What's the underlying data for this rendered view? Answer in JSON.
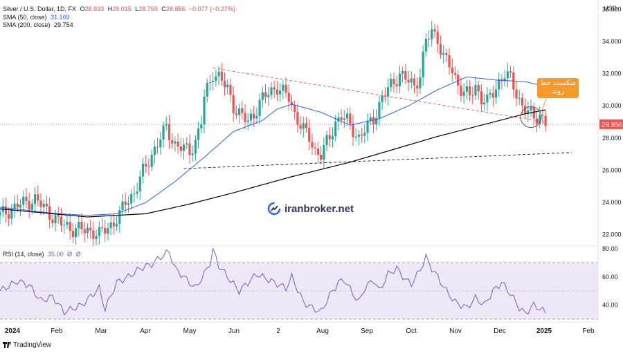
{
  "header": {
    "symbol_line": "Silver / U.S. Dollar, 1D, FX",
    "open_label": "O",
    "open": "28.933",
    "high_label": "H",
    "high": "29.015",
    "low_label": "L",
    "low": "28.759",
    "close_label": "C",
    "close": "28.856",
    "change": "−0.077 (−0.27%)",
    "sma50_label": "SMA (50, close)",
    "sma50_value": "31.169",
    "sma200_label": "SMA (200, close)",
    "sma200_value": "29.754"
  },
  "rsi_header": {
    "label": "RSI (14, close)",
    "value": "35.00",
    "extra1": "Ø",
    "extra2": "Ø"
  },
  "annotation": {
    "text_line1": "شکست خط",
    "text_line2": "روند"
  },
  "watermark": {
    "text": "iranbroker.net"
  },
  "footer": {
    "brand": "TradingView"
  },
  "colors": {
    "up": "#26a69a",
    "down": "#ef5350",
    "sma50": "#2962ff",
    "sma200": "#000000",
    "rsi_line": "#7e57c2",
    "rsi_band": "#ede7f6",
    "price_tag": "#ef5350",
    "callout": "#f79a2c"
  },
  "chart_data": {
    "type": "candlestick",
    "currency_label": "USD",
    "price_axis": {
      "ticks": [
        "36.000",
        "34.000",
        "32.000",
        "30.000",
        "28.000",
        "26.000",
        "24.000",
        "22.000"
      ],
      "range": [
        21.3,
        36.4
      ]
    },
    "last_price": "28.856",
    "time_axis": [
      "2024",
      "Feb",
      "Mar",
      "Apr",
      "May",
      "Jun",
      "2",
      "Aug",
      "Sep",
      "Oct",
      "Nov",
      "Dec",
      "2025",
      "Feb"
    ],
    "price_path": [
      [
        0,
        23.2
      ],
      [
        6,
        23.8
      ],
      [
        12,
        24.2
      ],
      [
        16,
        23.5
      ],
      [
        20,
        22.8
      ],
      [
        24,
        22.4
      ],
      [
        28,
        22.3
      ],
      [
        32,
        22.2
      ],
      [
        34,
        22.0
      ],
      [
        38,
        22.6
      ],
      [
        41,
        23.2
      ],
      [
        43,
        24.0
      ],
      [
        46,
        24.6
      ],
      [
        48,
        25.5
      ],
      [
        50,
        26.2
      ],
      [
        52,
        27.0
      ],
      [
        55,
        28.0
      ],
      [
        57,
        28.6
      ],
      [
        60,
        27.6
      ],
      [
        63,
        27.3
      ],
      [
        65,
        27.2
      ],
      [
        67,
        27.8
      ],
      [
        69,
        29.0
      ],
      [
        70,
        30.5
      ],
      [
        72,
        31.5
      ],
      [
        73,
        32.1
      ],
      [
        75,
        31.8
      ],
      [
        78,
        31.0
      ],
      [
        80,
        30.0
      ],
      [
        83,
        29.3
      ],
      [
        85,
        29.0
      ],
      [
        87,
        29.5
      ],
      [
        89,
        30.2
      ],
      [
        92,
        30.8
      ],
      [
        95,
        31.2
      ],
      [
        97,
        30.8
      ],
      [
        99,
        30.5
      ],
      [
        101,
        29.5
      ],
      [
        104,
        28.5
      ],
      [
        106,
        28.0
      ],
      [
        108,
        27.2
      ],
      [
        110,
        27.0
      ],
      [
        113,
        28.0
      ],
      [
        115,
        29.0
      ],
      [
        117,
        29.4
      ],
      [
        119,
        29.0
      ],
      [
        121,
        28.5
      ],
      [
        123,
        28.0
      ],
      [
        126,
        28.7
      ],
      [
        128,
        29.2
      ],
      [
        131,
        30.5
      ],
      [
        133,
        31.0
      ],
      [
        135,
        31.5
      ],
      [
        137,
        32.0
      ],
      [
        140,
        31.5
      ],
      [
        142,
        31.2
      ],
      [
        144,
        32.0
      ],
      [
        146,
        34.0
      ],
      [
        148,
        34.6
      ],
      [
        150,
        34.2
      ],
      [
        152,
        33.0
      ],
      [
        154,
        32.5
      ],
      [
        156,
        31.7
      ],
      [
        159,
        30.8
      ],
      [
        161,
        30.6
      ],
      [
        163,
        31.2
      ],
      [
        165,
        30.5
      ],
      [
        167,
        30.2
      ],
      [
        169,
        30.8
      ],
      [
        171,
        31.5
      ],
      [
        173,
        32.0
      ],
      [
        175,
        31.6
      ],
      [
        177,
        30.8
      ],
      [
        179,
        30.0
      ],
      [
        181,
        29.6
      ],
      [
        183,
        29.2
      ],
      [
        185,
        29.5
      ],
      [
        187,
        28.9
      ]
    ],
    "sma50_path": [
      [
        0,
        23.7
      ],
      [
        10,
        23.5
      ],
      [
        20,
        23.3
      ],
      [
        30,
        23.2
      ],
      [
        40,
        23.3
      ],
      [
        50,
        24.0
      ],
      [
        60,
        25.3
      ],
      [
        70,
        26.8
      ],
      [
        80,
        28.4
      ],
      [
        90,
        29.1
      ],
      [
        95,
        29.8
      ],
      [
        100,
        30.1
      ],
      [
        110,
        29.6
      ],
      [
        120,
        28.8
      ],
      [
        130,
        29.2
      ],
      [
        140,
        30.0
      ],
      [
        150,
        31.0
      ],
      [
        160,
        31.8
      ],
      [
        170,
        31.6
      ],
      [
        180,
        31.5
      ],
      [
        187,
        31.2
      ]
    ],
    "sma200_path": [
      [
        0,
        23.6
      ],
      [
        30,
        23.1
      ],
      [
        50,
        23.3
      ],
      [
        65,
        23.9
      ],
      [
        80,
        24.6
      ],
      [
        100,
        25.6
      ],
      [
        120,
        26.5
      ],
      [
        135,
        27.3
      ],
      [
        150,
        28.1
      ],
      [
        165,
        28.8
      ],
      [
        180,
        29.5
      ],
      [
        187,
        29.75
      ]
    ],
    "trendlines": [
      {
        "style": "dashed",
        "color": "#ef5350",
        "from": [
          73,
          32.35
        ],
        "to": [
          187,
          29.0
        ]
      },
      {
        "style": "dashed",
        "color": "#131722",
        "from": [
          63,
          26.1
        ],
        "to": [
          196,
          27.1
        ]
      }
    ],
    "rsi": {
      "ticks": [
        "80.00",
        "60.00",
        "40.00"
      ],
      "band": [
        30,
        70
      ],
      "midline": 50,
      "range": [
        28,
        82
      ],
      "path": [
        [
          0,
          50
        ],
        [
          6,
          57
        ],
        [
          10,
          54
        ],
        [
          14,
          43
        ],
        [
          18,
          46
        ],
        [
          22,
          35
        ],
        [
          28,
          40
        ],
        [
          34,
          52
        ],
        [
          36,
          37
        ],
        [
          40,
          56
        ],
        [
          44,
          60
        ],
        [
          48,
          66
        ],
        [
          52,
          69
        ],
        [
          55,
          74
        ],
        [
          58,
          78
        ],
        [
          60,
          66
        ],
        [
          63,
          60
        ],
        [
          67,
          52
        ],
        [
          70,
          62
        ],
        [
          72,
          70
        ],
        [
          73,
          79
        ],
        [
          75,
          68
        ],
        [
          78,
          60
        ],
        [
          80,
          55
        ],
        [
          82,
          50
        ],
        [
          85,
          56
        ],
        [
          88,
          62
        ],
        [
          90,
          60
        ],
        [
          94,
          56
        ],
        [
          98,
          52
        ],
        [
          100,
          60
        ],
        [
          104,
          42
        ],
        [
          107,
          38
        ],
        [
          110,
          35
        ],
        [
          113,
          47
        ],
        [
          116,
          56
        ],
        [
          118,
          58
        ],
        [
          121,
          48
        ],
        [
          123,
          42
        ],
        [
          125,
          52
        ],
        [
          128,
          58
        ],
        [
          130,
          50
        ],
        [
          133,
          62
        ],
        [
          136,
          66
        ],
        [
          139,
          58
        ],
        [
          141,
          55
        ],
        [
          144,
          65
        ],
        [
          146,
          74
        ],
        [
          148,
          66
        ],
        [
          150,
          60
        ],
        [
          153,
          50
        ],
        [
          156,
          42
        ],
        [
          160,
          38
        ],
        [
          163,
          45
        ],
        [
          166,
          40
        ],
        [
          169,
          50
        ],
        [
          172,
          56
        ],
        [
          175,
          48
        ],
        [
          178,
          38
        ],
        [
          180,
          34
        ],
        [
          183,
          40
        ],
        [
          186,
          36
        ],
        [
          187,
          35
        ]
      ]
    }
  }
}
